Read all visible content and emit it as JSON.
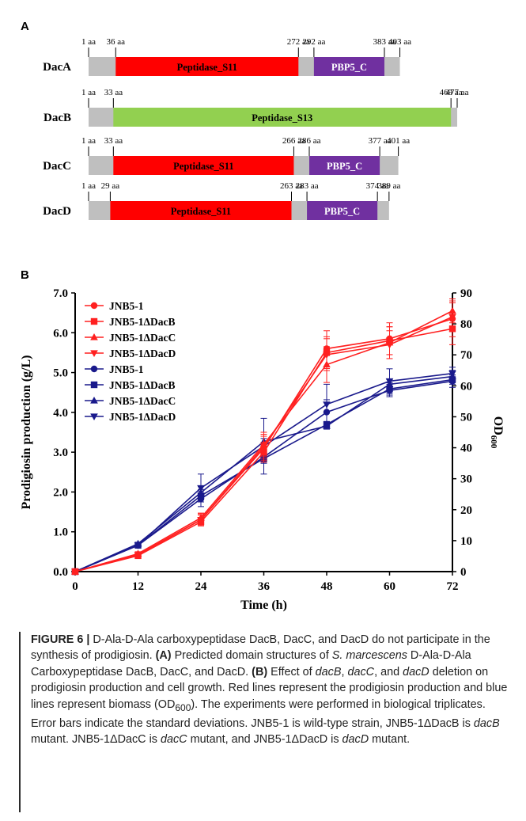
{
  "panel_a": {
    "label": "A",
    "proteins": [
      {
        "name": "DacA",
        "length": 477,
        "end": 403,
        "ticks": [
          {
            "pos": 1,
            "label": "1 aa"
          },
          {
            "pos": 36,
            "label": "36 aa"
          },
          {
            "pos": 272,
            "label": "272 aa"
          },
          {
            "pos": 292,
            "label": "292 aa"
          },
          {
            "pos": 383,
            "label": "383 aa"
          },
          {
            "pos": 403,
            "label": "403 aa"
          }
        ],
        "domains": [
          {
            "name": "Peptidase_S11",
            "start": 36,
            "end": 272,
            "color": "#ff0000"
          },
          {
            "name": "PBP5_C",
            "start": 292,
            "end": 383,
            "color": "#7030a0"
          }
        ]
      },
      {
        "name": "DacB",
        "length": 477,
        "end": 477,
        "ticks": [
          {
            "pos": 1,
            "label": "1 aa"
          },
          {
            "pos": 33,
            "label": "33 aa"
          },
          {
            "pos": 469,
            "label": "469 aa"
          },
          {
            "pos": 477,
            "label": "477 aa"
          }
        ],
        "domains": [
          {
            "name": "Peptidase_S13",
            "start": 33,
            "end": 469,
            "color": "#92d050"
          }
        ]
      },
      {
        "name": "DacC",
        "length": 477,
        "end": 401,
        "ticks": [
          {
            "pos": 1,
            "label": "1 aa"
          },
          {
            "pos": 33,
            "label": "33 aa"
          },
          {
            "pos": 266,
            "label": "266 aa"
          },
          {
            "pos": 286,
            "label": "286 aa"
          },
          {
            "pos": 377,
            "label": "377 aa"
          },
          {
            "pos": 401,
            "label": "401 aa"
          }
        ],
        "domains": [
          {
            "name": "Peptidase_S11",
            "start": 33,
            "end": 266,
            "color": "#ff0000"
          },
          {
            "name": "PBP5_C",
            "start": 286,
            "end": 377,
            "color": "#7030a0"
          }
        ]
      },
      {
        "name": "DacD",
        "length": 477,
        "end": 389,
        "ticks": [
          {
            "pos": 1,
            "label": "1 aa"
          },
          {
            "pos": 29,
            "label": "29 aa"
          },
          {
            "pos": 263,
            "label": "263 aa"
          },
          {
            "pos": 283,
            "label": "283 aa"
          },
          {
            "pos": 374,
            "label": "374 aa"
          },
          {
            "pos": 389,
            "label": "389 aa"
          }
        ],
        "domains": [
          {
            "name": "Peptidase_S11",
            "start": 29,
            "end": 263,
            "color": "#ff0000"
          },
          {
            "name": "PBP5_C",
            "start": 283,
            "end": 374,
            "color": "#7030a0"
          }
        ]
      }
    ],
    "backbone_color": "#bfbfbf"
  },
  "panel_b": {
    "label": "B"
  },
  "chart_data": {
    "type": "line",
    "xlabel": "Time (h)",
    "ylabel": "Prodigiosin production (g/L)",
    "y2label": "OD",
    "y2label_sub": "600",
    "x": [
      0,
      12,
      24,
      36,
      48,
      60,
      72
    ],
    "xlim": [
      0,
      72
    ],
    "ylim": [
      0,
      7
    ],
    "y2lim": [
      0,
      90
    ],
    "x_ticks": [
      "0",
      "12",
      "24",
      "36",
      "48",
      "60",
      "72"
    ],
    "y_ticks": [
      "0.0",
      "1.0",
      "2.0",
      "3.0",
      "4.0",
      "5.0",
      "6.0",
      "7.0"
    ],
    "y2_ticks": [
      "0",
      "10",
      "20",
      "30",
      "40",
      "50",
      "60",
      "70",
      "80",
      "90"
    ],
    "legend_position": "top-left",
    "series": [
      {
        "name": "JNB5-1",
        "axis": "left",
        "color": "#ff2020",
        "marker": "circle",
        "values": [
          0,
          0.42,
          1.3,
          3.1,
          5.6,
          5.85,
          6.35
        ],
        "errors": [
          0,
          0.05,
          0.15,
          0.3,
          0.45,
          0.4,
          0.45
        ]
      },
      {
        "name": "JNB5-1ΔDacB",
        "axis": "left",
        "color": "#ff2020",
        "marker": "square",
        "values": [
          0,
          0.4,
          1.25,
          3.0,
          5.5,
          5.8,
          6.1
        ],
        "errors": [
          0,
          0.05,
          0.1,
          0.25,
          0.4,
          0.35,
          0.4
        ]
      },
      {
        "name": "JNB5-1ΔDacC",
        "axis": "left",
        "color": "#ff2020",
        "marker": "triangle-up",
        "values": [
          0,
          0.45,
          1.35,
          3.2,
          5.2,
          5.75,
          6.55
        ],
        "errors": [
          0,
          0.05,
          0.12,
          0.3,
          0.45,
          0.4,
          0.3
        ]
      },
      {
        "name": "JNB5-1ΔDacD",
        "axis": "left",
        "color": "#ff2020",
        "marker": "triangle-down",
        "values": [
          0,
          0.42,
          1.3,
          3.15,
          5.45,
          5.7,
          6.4
        ],
        "errors": [
          0,
          0.05,
          0.12,
          0.3,
          0.4,
          0.35,
          0.35
        ]
      },
      {
        "name": "JNB5-1",
        "axis": "right",
        "color": "#1a1a8c",
        "marker": "circle",
        "values": [
          0,
          8.5,
          23.5,
          37,
          51.5,
          58.5,
          61.5
        ],
        "errors": [
          0,
          0.5,
          2.5,
          2,
          4,
          2,
          2
        ]
      },
      {
        "name": "JNB5-1ΔDacB",
        "axis": "right",
        "color": "#1a1a8c",
        "marker": "square",
        "values": [
          0,
          8.5,
          24.5,
          36.5,
          47.5,
          59,
          62
        ],
        "errors": [
          0,
          0.5,
          2,
          1.5,
          1,
          2,
          1.5
        ]
      },
      {
        "name": "JNB5-1ΔDacC",
        "axis": "right",
        "color": "#1a1a8c",
        "marker": "triangle-up",
        "values": [
          0,
          9,
          25.5,
          42,
          47,
          60.5,
          63
        ],
        "errors": [
          0,
          0.5,
          2,
          1,
          1,
          1.5,
          2
        ]
      },
      {
        "name": "JNB5-1ΔDacD",
        "axis": "right",
        "color": "#1a1a8c",
        "marker": "triangle-down",
        "values": [
          0,
          8.5,
          27,
          40.5,
          54,
          61.5,
          64
        ],
        "errors": [
          0,
          0.5,
          4.5,
          9,
          6.5,
          4,
          2
        ]
      }
    ]
  },
  "caption": {
    "figure_label": "FIGURE 6 |",
    "intro": " D-Ala-D-Ala carboxypeptidase DacB, DacC, and DacD do not participate in the synthesis of prodigiosin. ",
    "a_label": "(A)",
    "a_text_1": " Predicted domain structures of ",
    "species": "S. marcescens",
    "a_text_2": " D-Ala-D-Ala Carboxypeptidase DacB, DacC, and DacD. ",
    "b_label": "(B)",
    "b_text_1": " Effect of ",
    "gene_b": "dacB",
    "sep_1": ", ",
    "gene_c": "dacC",
    "sep_2": ", and ",
    "gene_d": "dacD",
    "b_text_2": " deletion on prodigiosin production and cell growth. Red lines represent the prodigiosin production and blue lines represent biomass (OD",
    "od_sub": "600",
    "b_text_3": "). The experiments were performed in biological triplicates. Error bars indicate the standard deviations. JNB5-1 is wild-type strain, JNB5-1ΔDacB is ",
    "m_b": "dacB",
    "b_text_4": " mutant. JNB5-1ΔDacC is ",
    "m_c": "dacC",
    "b_text_5": " mutant, and JNB5-1ΔDacD is ",
    "m_d": "dacD",
    "b_text_6": " mutant."
  }
}
